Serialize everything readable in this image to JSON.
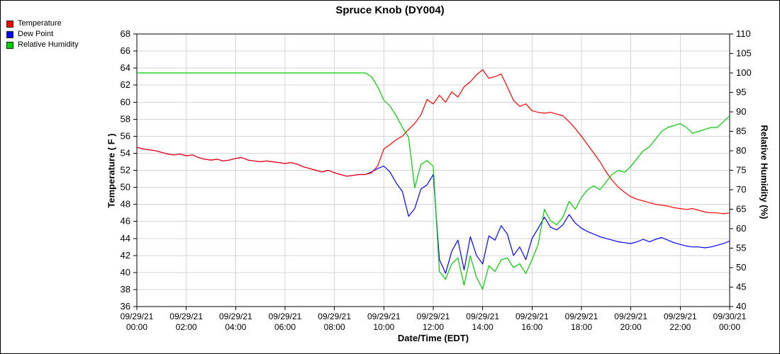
{
  "chart_data": {
    "type": "line",
    "title": "Spruce Knob (DY004)",
    "xlabel": "Date/Time (EDT)",
    "ylabel_left": "Temperature ( F )",
    "ylabel_right": "Relative Humidity (%)",
    "grid": true,
    "legend_position": "top-left",
    "x_hours_range": [
      0,
      24
    ],
    "ylim_left": [
      36,
      68
    ],
    "ytick_step_left": 2,
    "ylim_right": [
      40,
      110
    ],
    "ytick_step_right": 5,
    "x_ticks": [
      {
        "hour": 0,
        "date": "09/29/21",
        "time": "00:00"
      },
      {
        "hour": 2,
        "date": "09/29/21",
        "time": "02:00"
      },
      {
        "hour": 4,
        "date": "09/29/21",
        "time": "04:00"
      },
      {
        "hour": 6,
        "date": "09/29/21",
        "time": "06:00"
      },
      {
        "hour": 8,
        "date": "09/29/21",
        "time": "08:00"
      },
      {
        "hour": 10,
        "date": "09/29/21",
        "time": "10:00"
      },
      {
        "hour": 12,
        "date": "09/29/21",
        "time": "12:00"
      },
      {
        "hour": 14,
        "date": "09/29/21",
        "time": "14:00"
      },
      {
        "hour": 16,
        "date": "09/29/21",
        "time": "16:00"
      },
      {
        "hour": 18,
        "date": "09/29/21",
        "time": "18:00"
      },
      {
        "hour": 20,
        "date": "09/29/21",
        "time": "20:00"
      },
      {
        "hour": 22,
        "date": "09/29/21",
        "time": "22:00"
      },
      {
        "hour": 24,
        "date": "09/30/21",
        "time": "00:00"
      }
    ],
    "series": [
      {
        "name": "Temperature",
        "color": "#ff0000",
        "axis": "left",
        "x_start": 0,
        "x_step": 0.25,
        "values": [
          54.7,
          54.5,
          54.4,
          54.3,
          54.1,
          53.9,
          53.8,
          53.9,
          53.7,
          53.8,
          53.5,
          53.3,
          53.2,
          53.3,
          53.1,
          53.2,
          53.4,
          53.5,
          53.2,
          53.1,
          53.0,
          53.1,
          53.0,
          52.9,
          52.8,
          52.9,
          52.7,
          52.4,
          52.2,
          52.0,
          51.8,
          52.0,
          51.7,
          51.5,
          51.3,
          51.4,
          51.5,
          51.5,
          51.7,
          52.5,
          54.5,
          55.0,
          55.6,
          56.0,
          56.8,
          57.5,
          58.5,
          60.3,
          59.8,
          60.8,
          60.0,
          61.2,
          60.6,
          61.8,
          62.4,
          63.2,
          63.8,
          62.8,
          63.0,
          63.3,
          61.8,
          60.2,
          59.5,
          59.8,
          59.0,
          58.8,
          58.7,
          58.8,
          58.6,
          58.4,
          57.7,
          56.9,
          56.0,
          55.0,
          54.0,
          53.0,
          51.8,
          50.8,
          50.0,
          49.4,
          48.9,
          48.6,
          48.4,
          48.2,
          48.0,
          47.9,
          47.8,
          47.6,
          47.5,
          47.4,
          47.5,
          47.3,
          47.1,
          47.0,
          47.0,
          46.9,
          47.0
        ]
      },
      {
        "name": "Dew Point",
        "color": "#0000ff",
        "axis": "left",
        "x_start": 0,
        "x_step": 0.25,
        "values": [
          54.7,
          54.5,
          54.4,
          54.3,
          54.1,
          53.9,
          53.8,
          53.9,
          53.7,
          53.8,
          53.5,
          53.3,
          53.2,
          53.3,
          53.1,
          53.2,
          53.4,
          53.5,
          53.2,
          53.1,
          53.0,
          53.1,
          53.0,
          52.9,
          52.8,
          52.9,
          52.7,
          52.4,
          52.2,
          52.0,
          51.8,
          52.0,
          51.7,
          51.5,
          51.3,
          51.4,
          51.5,
          51.5,
          51.8,
          52.2,
          52.5,
          51.8,
          50.5,
          49.5,
          46.6,
          47.5,
          49.8,
          50.3,
          51.5,
          41.5,
          39.9,
          42.5,
          43.8,
          40.3,
          44.2,
          42.0,
          41.0,
          44.3,
          43.8,
          45.5,
          44.5,
          42.0,
          43.0,
          41.5,
          44.0,
          45.2,
          46.5,
          45.3,
          45.0,
          45.6,
          46.8,
          45.8,
          45.2,
          44.8,
          44.5,
          44.2,
          44.0,
          43.8,
          43.6,
          43.5,
          43.4,
          43.6,
          43.9,
          43.6,
          43.9,
          44.1,
          43.8,
          43.5,
          43.3,
          43.1,
          43.0,
          43.0,
          42.9,
          43.0,
          43.2,
          43.4,
          43.7
        ]
      },
      {
        "name": "Relative Humidity",
        "color": "#00cc00",
        "axis": "right",
        "x_start": 0,
        "x_step": 0.25,
        "values": [
          100,
          100,
          100,
          100,
          100,
          100,
          100,
          100,
          100,
          100,
          100,
          100,
          100,
          100,
          100,
          100,
          100,
          100,
          100,
          100,
          100,
          100,
          100,
          100,
          100,
          100,
          100,
          100,
          100,
          100,
          100,
          100,
          100,
          100,
          100,
          100,
          100,
          100,
          99.0,
          96.5,
          93.0,
          91.5,
          89.0,
          86.0,
          83.5,
          70.5,
          76.5,
          77.5,
          76.0,
          49.0,
          47.0,
          51.0,
          52.5,
          45.5,
          53.0,
          47.5,
          44.5,
          50.5,
          49.0,
          52.0,
          52.5,
          50.0,
          51.0,
          48.5,
          52.0,
          56.0,
          65.0,
          62.0,
          61.0,
          63.0,
          67.0,
          65.0,
          68.0,
          70.0,
          71.0,
          70.0,
          72.0,
          74.0,
          75.0,
          74.5,
          76.0,
          78.0,
          80.0,
          81.0,
          83.0,
          85.0,
          86.0,
          86.5,
          87.0,
          86.0,
          84.5,
          85.0,
          85.5,
          86.0,
          86.0,
          87.5,
          89.0
        ]
      }
    ]
  }
}
